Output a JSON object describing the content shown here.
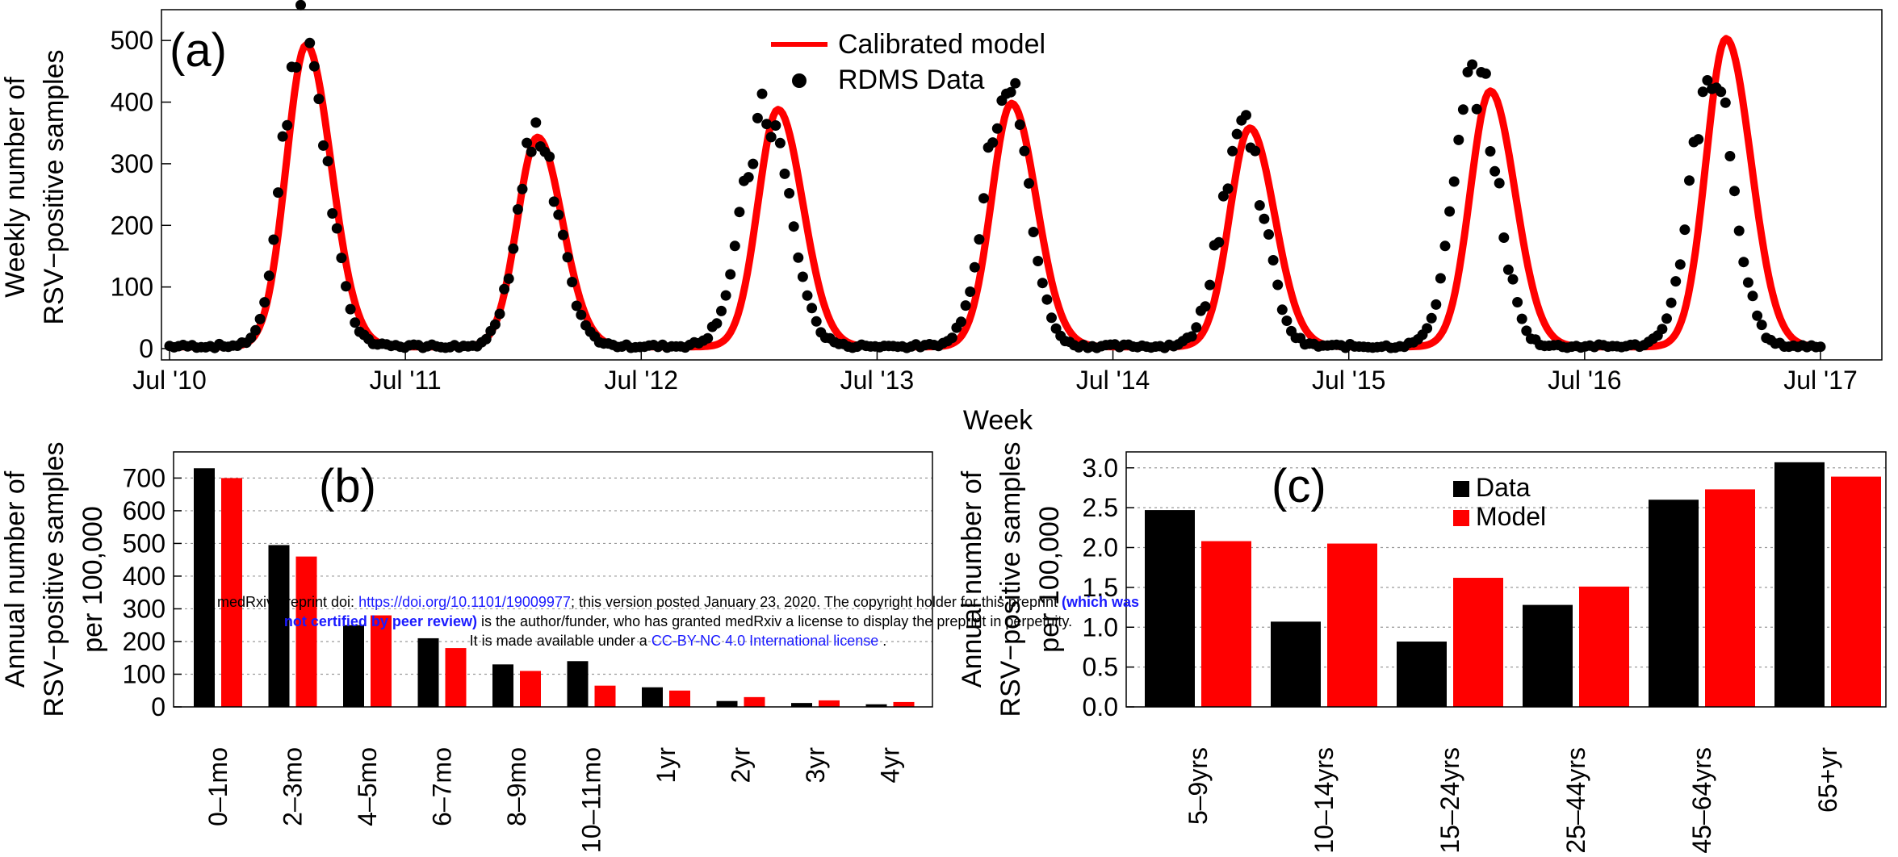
{
  "chart_data": [
    {
      "type": "line",
      "panel_label": "(a)",
      "xlabel": "Week",
      "ylabel": [
        "Weekly number of",
        "RSV−positive samples"
      ],
      "xticks": [
        "Jul '10",
        "Jul '11",
        "Jul '12",
        "Jul '13",
        "Jul '14",
        "Jul '15",
        "Jul '16",
        "Jul '17"
      ],
      "ylim": [
        0,
        550
      ],
      "yticks": [
        0,
        100,
        200,
        300,
        400,
        500
      ],
      "x_units": "years since Jul '10",
      "legend": {
        "placement": "top-center",
        "entries": [
          "Calibrated model",
          "RDMS Data"
        ]
      },
      "colors": {
        "model": "#ff0000",
        "data": "#000000"
      },
      "series": [
        {
          "name": "Calibrated model",
          "style": "line",
          "peaks": [
            {
              "x": 0.58,
              "y": 490,
              "rise": 0.085,
              "fall": 0.105
            },
            {
              "x": 1.56,
              "y": 340,
              "rise": 0.085,
              "fall": 0.105
            },
            {
              "x": 2.58,
              "y": 385,
              "rise": 0.085,
              "fall": 0.105
            },
            {
              "x": 3.57,
              "y": 395,
              "rise": 0.085,
              "fall": 0.105
            },
            {
              "x": 4.58,
              "y": 355,
              "rise": 0.085,
              "fall": 0.105
            },
            {
              "x": 5.6,
              "y": 415,
              "rise": 0.085,
              "fall": 0.105
            },
            {
              "x": 6.6,
              "y": 500,
              "rise": 0.085,
              "fall": 0.105
            }
          ],
          "baseline": 3
        },
        {
          "name": "RDMS Data",
          "style": "points",
          "peaks": [
            {
              "x": 0.56,
              "y": 530,
              "rise": 0.08,
              "fall": 0.1
            },
            {
              "x": 1.55,
              "y": 330,
              "rise": 0.08,
              "fall": 0.1
            },
            {
              "x": 2.53,
              "y": 375,
              "rise": 0.1,
              "fall": 0.1
            },
            {
              "x": 3.55,
              "y": 430,
              "rise": 0.09,
              "fall": 0.09
            },
            {
              "x": 4.55,
              "y": 360,
              "rise": 0.09,
              "fall": 0.09
            },
            {
              "x": 5.54,
              "y": 440,
              "rise": 0.09,
              "fall": 0.09
            },
            {
              "x": 6.54,
              "y": 450,
              "rise": 0.09,
              "fall": 0.09
            }
          ],
          "baseline": 4
        }
      ]
    },
    {
      "type": "bar",
      "panel_label": "(b)",
      "ylabel": [
        "Annual number of",
        "RSV−positive samples",
        "per 100,000"
      ],
      "categories": [
        "0–1mo",
        "2–3mo",
        "4–5mo",
        "6–7mo",
        "8–9mo",
        "10–11mo",
        "1yr",
        "2yr",
        "3yr",
        "4yr"
      ],
      "ylim": [
        0,
        780
      ],
      "yticks": [
        0,
        100,
        200,
        300,
        400,
        500,
        600,
        700
      ],
      "grid": true,
      "series": [
        {
          "name": "Data",
          "color": "#000000",
          "values": [
            730,
            495,
            250,
            210,
            130,
            140,
            60,
            18,
            12,
            8
          ]
        },
        {
          "name": "Model",
          "color": "#ff0000",
          "values": [
            700,
            460,
            280,
            180,
            110,
            65,
            50,
            30,
            20,
            15
          ]
        }
      ]
    },
    {
      "type": "bar",
      "panel_label": "(c)",
      "ylabel": [
        "Annual number of",
        "RSV−positive samples",
        "per 100,000"
      ],
      "categories": [
        "5–9yrs",
        "10–14yrs",
        "15–24yrs",
        "25–44yrs",
        "45–64yrs",
        "65+yr"
      ],
      "ylim": [
        0,
        3.2
      ],
      "yticks": [
        "0.0",
        "0.5",
        "1.0",
        "1.5",
        "2.0",
        "2.5",
        "3.0"
      ],
      "grid": true,
      "legend": {
        "placement": "top-center",
        "entries": [
          "Data",
          "Model"
        ]
      },
      "series": [
        {
          "name": "Data",
          "color": "#000000",
          "values": [
            2.47,
            1.07,
            0.82,
            1.28,
            2.6,
            3.07
          ]
        },
        {
          "name": "Model",
          "color": "#ff0000",
          "values": [
            2.08,
            2.05,
            1.62,
            1.51,
            2.73,
            2.89
          ]
        }
      ]
    }
  ],
  "watermark": {
    "line1_prefix": "medRxiv preprint doi: ",
    "line1_link": "https://doi.org/10.1101/19009977",
    "line1_mid": "; this version posted January 23, 2020. The copyright holder for this preprint ",
    "line1_bold": "(which was",
    "line2_bold": "not certified by peer review)",
    "line2_rest": " is the author/funder, who has granted medRxiv a license to display the preprint in perpetuity.",
    "line3_prefix": "It is made available under a ",
    "line3_link": "CC-BY-NC 4.0 International license",
    "line3_suffix": " ."
  }
}
